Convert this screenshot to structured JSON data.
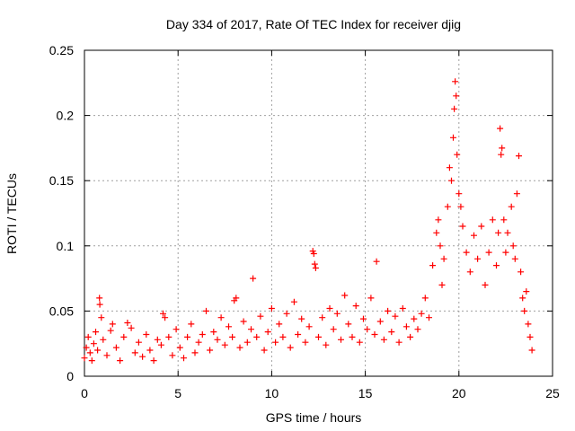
{
  "chart_data": {
    "type": "scatter",
    "title": "Day 334 of 2017, Rate Of TEC Index for receiver djig",
    "xlabel": "GPS time / hours",
    "ylabel": "ROTI / TECUs",
    "xlim": [
      0,
      25
    ],
    "ylim": [
      0,
      0.25
    ],
    "grid": true,
    "marker": "+",
    "xticks": [
      0,
      5,
      10,
      15,
      20,
      25
    ],
    "xtick_labels": [
      "0",
      "5",
      "10",
      "15",
      "20",
      "25"
    ],
    "yticks": [
      0,
      0.05,
      0.1,
      0.15,
      0.2,
      0.25
    ],
    "ytick_labels": [
      "0",
      "0.05",
      "0.1",
      "0.15",
      "0.2",
      "0.25"
    ],
    "series": [
      {
        "name": "ROTI",
        "color": "#ff0000",
        "points": [
          [
            0.0,
            0.014
          ],
          [
            0.1,
            0.022
          ],
          [
            0.2,
            0.03
          ],
          [
            0.3,
            0.018
          ],
          [
            0.4,
            0.012
          ],
          [
            0.5,
            0.025
          ],
          [
            0.6,
            0.034
          ],
          [
            0.7,
            0.02
          ],
          [
            0.8,
            0.06
          ],
          [
            0.82,
            0.055
          ],
          [
            0.9,
            0.045
          ],
          [
            1.0,
            0.028
          ],
          [
            1.2,
            0.016
          ],
          [
            1.4,
            0.035
          ],
          [
            1.5,
            0.04
          ],
          [
            1.7,
            0.022
          ],
          [
            1.9,
            0.012
          ],
          [
            2.1,
            0.03
          ],
          [
            2.3,
            0.041
          ],
          [
            2.5,
            0.037
          ],
          [
            2.7,
            0.018
          ],
          [
            2.9,
            0.026
          ],
          [
            3.1,
            0.015
          ],
          [
            3.3,
            0.032
          ],
          [
            3.5,
            0.02
          ],
          [
            3.7,
            0.012
          ],
          [
            3.9,
            0.028
          ],
          [
            4.1,
            0.024
          ],
          [
            4.2,
            0.048
          ],
          [
            4.3,
            0.045
          ],
          [
            4.5,
            0.03
          ],
          [
            4.7,
            0.016
          ],
          [
            4.9,
            0.036
          ],
          [
            5.1,
            0.022
          ],
          [
            5.3,
            0.014
          ],
          [
            5.5,
            0.03
          ],
          [
            5.7,
            0.04
          ],
          [
            5.9,
            0.018
          ],
          [
            6.1,
            0.026
          ],
          [
            6.3,
            0.032
          ],
          [
            6.5,
            0.05
          ],
          [
            6.7,
            0.02
          ],
          [
            6.9,
            0.034
          ],
          [
            7.1,
            0.028
          ],
          [
            7.3,
            0.045
          ],
          [
            7.5,
            0.024
          ],
          [
            7.7,
            0.038
          ],
          [
            7.9,
            0.03
          ],
          [
            8.0,
            0.058
          ],
          [
            8.1,
            0.06
          ],
          [
            8.3,
            0.022
          ],
          [
            8.5,
            0.042
          ],
          [
            8.7,
            0.026
          ],
          [
            8.9,
            0.036
          ],
          [
            9.0,
            0.075
          ],
          [
            9.2,
            0.03
          ],
          [
            9.4,
            0.046
          ],
          [
            9.6,
            0.02
          ],
          [
            9.8,
            0.034
          ],
          [
            10.0,
            0.052
          ],
          [
            10.2,
            0.026
          ],
          [
            10.4,
            0.04
          ],
          [
            10.6,
            0.03
          ],
          [
            10.8,
            0.048
          ],
          [
            11.0,
            0.022
          ],
          [
            11.2,
            0.057
          ],
          [
            11.4,
            0.032
          ],
          [
            11.6,
            0.044
          ],
          [
            11.8,
            0.026
          ],
          [
            12.0,
            0.038
          ],
          [
            12.2,
            0.096
          ],
          [
            12.25,
            0.094
          ],
          [
            12.3,
            0.086
          ],
          [
            12.35,
            0.083
          ],
          [
            12.5,
            0.03
          ],
          [
            12.7,
            0.045
          ],
          [
            12.9,
            0.024
          ],
          [
            13.1,
            0.052
          ],
          [
            13.3,
            0.036
          ],
          [
            13.5,
            0.048
          ],
          [
            13.7,
            0.028
          ],
          [
            13.9,
            0.062
          ],
          [
            14.1,
            0.04
          ],
          [
            14.3,
            0.03
          ],
          [
            14.5,
            0.054
          ],
          [
            14.7,
            0.026
          ],
          [
            14.9,
            0.044
          ],
          [
            15.1,
            0.036
          ],
          [
            15.3,
            0.06
          ],
          [
            15.5,
            0.032
          ],
          [
            15.6,
            0.088
          ],
          [
            15.8,
            0.042
          ],
          [
            16.0,
            0.028
          ],
          [
            16.2,
            0.05
          ],
          [
            16.4,
            0.034
          ],
          [
            16.6,
            0.046
          ],
          [
            16.8,
            0.026
          ],
          [
            17.0,
            0.052
          ],
          [
            17.2,
            0.038
          ],
          [
            17.4,
            0.03
          ],
          [
            17.6,
            0.044
          ],
          [
            17.8,
            0.036
          ],
          [
            18.0,
            0.048
          ],
          [
            18.2,
            0.06
          ],
          [
            18.4,
            0.045
          ],
          [
            18.6,
            0.085
          ],
          [
            18.8,
            0.11
          ],
          [
            18.9,
            0.12
          ],
          [
            19.0,
            0.1
          ],
          [
            19.1,
            0.07
          ],
          [
            19.2,
            0.09
          ],
          [
            19.4,
            0.13
          ],
          [
            19.5,
            0.16
          ],
          [
            19.6,
            0.15
          ],
          [
            19.7,
            0.183
          ],
          [
            19.75,
            0.205
          ],
          [
            19.8,
            0.226
          ],
          [
            19.85,
            0.215
          ],
          [
            19.9,
            0.17
          ],
          [
            20.0,
            0.14
          ],
          [
            20.1,
            0.13
          ],
          [
            20.2,
            0.115
          ],
          [
            20.4,
            0.095
          ],
          [
            20.6,
            0.08
          ],
          [
            20.8,
            0.108
          ],
          [
            21.0,
            0.09
          ],
          [
            21.2,
            0.115
          ],
          [
            21.4,
            0.07
          ],
          [
            21.6,
            0.095
          ],
          [
            21.8,
            0.12
          ],
          [
            22.0,
            0.085
          ],
          [
            22.1,
            0.11
          ],
          [
            22.2,
            0.19
          ],
          [
            22.25,
            0.17
          ],
          [
            22.3,
            0.175
          ],
          [
            22.4,
            0.12
          ],
          [
            22.5,
            0.095
          ],
          [
            22.6,
            0.11
          ],
          [
            22.8,
            0.13
          ],
          [
            22.9,
            0.1
          ],
          [
            23.0,
            0.09
          ],
          [
            23.1,
            0.14
          ],
          [
            23.2,
            0.169
          ],
          [
            23.3,
            0.08
          ],
          [
            23.4,
            0.06
          ],
          [
            23.5,
            0.05
          ],
          [
            23.6,
            0.065
          ],
          [
            23.7,
            0.04
          ],
          [
            23.8,
            0.03
          ],
          [
            23.9,
            0.02
          ]
        ]
      }
    ]
  }
}
